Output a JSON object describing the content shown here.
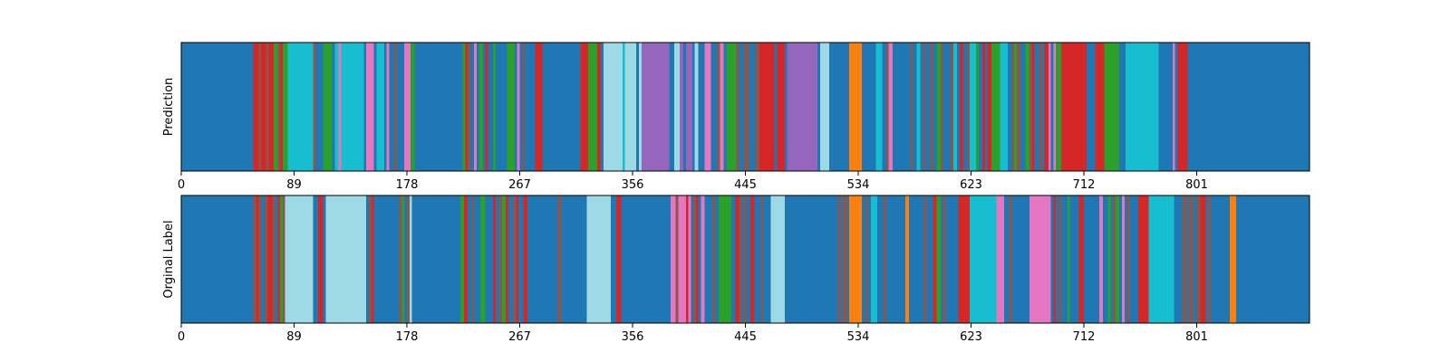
{
  "palette": {
    "B": "#1f77b4",
    "R": "#d62728",
    "G": "#2ca02c",
    "M": "#8c564b",
    "C": "#17becf",
    "L": "#9edae5",
    "P": "#e377c2",
    "V": "#9467bd",
    "O": "#ff7f0e"
  },
  "chart_data": [
    {
      "type": "heatmap",
      "ylabel": "Prediction",
      "xlim": [
        0,
        890
      ],
      "xticks": [
        0,
        89,
        178,
        267,
        356,
        445,
        534,
        623,
        712,
        801
      ],
      "grid": false,
      "segments": [
        [
          "B",
          0,
          57
        ],
        [
          "R",
          57,
          61
        ],
        [
          "M",
          61,
          63
        ],
        [
          "R",
          63,
          67
        ],
        [
          "M",
          67,
          69
        ],
        [
          "R",
          69,
          73
        ],
        [
          "G",
          73,
          76
        ],
        [
          "M",
          76,
          78
        ],
        [
          "R",
          78,
          80
        ],
        [
          "G",
          80,
          84
        ],
        [
          "C",
          84,
          104
        ],
        [
          "M",
          104,
          106
        ],
        [
          "B",
          106,
          112
        ],
        [
          "G",
          112,
          119
        ],
        [
          "B",
          119,
          121
        ],
        [
          "C",
          121,
          124
        ],
        [
          "P",
          124,
          126
        ],
        [
          "C",
          126,
          144
        ],
        [
          "B",
          144,
          146
        ],
        [
          "P",
          146,
          152
        ],
        [
          "B",
          152,
          154
        ],
        [
          "C",
          154,
          160
        ],
        [
          "B",
          160,
          162
        ],
        [
          "P",
          162,
          164
        ],
        [
          "B",
          164,
          168
        ],
        [
          "M",
          168,
          170
        ],
        [
          "B",
          170,
          176
        ],
        [
          "P",
          176,
          181
        ],
        [
          "G",
          181,
          184
        ],
        [
          "B",
          184,
          222
        ],
        [
          "G",
          222,
          224
        ],
        [
          "R",
          224,
          226
        ],
        [
          "M",
          226,
          228
        ],
        [
          "B",
          228,
          231
        ],
        [
          "P",
          231,
          233
        ],
        [
          "B",
          233,
          235
        ],
        [
          "G",
          235,
          238
        ],
        [
          "B",
          238,
          240
        ],
        [
          "R",
          240,
          242
        ],
        [
          "B",
          242,
          246
        ],
        [
          "G",
          246,
          248
        ],
        [
          "B",
          248,
          257
        ],
        [
          "G",
          257,
          263
        ],
        [
          "B",
          263,
          265
        ],
        [
          "P",
          265,
          267
        ],
        [
          "B",
          267,
          269
        ],
        [
          "M",
          269,
          271
        ],
        [
          "B",
          271,
          279
        ],
        [
          "R",
          279,
          285
        ],
        [
          "B",
          285,
          315
        ],
        [
          "R",
          315,
          321
        ],
        [
          "G",
          321,
          328
        ],
        [
          "R",
          328,
          331
        ],
        [
          "B",
          331,
          333
        ],
        [
          "L",
          333,
          348
        ],
        [
          "C",
          348,
          350
        ],
        [
          "L",
          350,
          359
        ],
        [
          "B",
          359,
          361
        ],
        [
          "L",
          361,
          363
        ],
        [
          "V",
          363,
          385
        ],
        [
          "B",
          385,
          389
        ],
        [
          "L",
          389,
          393
        ],
        [
          "V",
          393,
          396
        ],
        [
          "B",
          396,
          398
        ],
        [
          "V",
          398,
          403
        ],
        [
          "B",
          403,
          405
        ],
        [
          "L",
          405,
          408
        ],
        [
          "B",
          408,
          413
        ],
        [
          "P",
          413,
          418
        ],
        [
          "B",
          418,
          423
        ],
        [
          "M",
          423,
          425
        ],
        [
          "P",
          425,
          428
        ],
        [
          "B",
          428,
          430
        ],
        [
          "G",
          430,
          438
        ],
        [
          "M",
          438,
          440
        ],
        [
          "B",
          440,
          444
        ],
        [
          "M",
          444,
          448
        ],
        [
          "B",
          448,
          453
        ],
        [
          "M",
          453,
          456
        ],
        [
          "R",
          456,
          468
        ],
        [
          "B",
          468,
          470
        ],
        [
          "R",
          470,
          476
        ],
        [
          "B",
          476,
          478
        ],
        [
          "V",
          478,
          502
        ],
        [
          "B",
          502,
          504
        ],
        [
          "L",
          504,
          511
        ],
        [
          "B",
          511,
          527
        ],
        [
          "O",
          527,
          537
        ],
        [
          "B",
          537,
          548
        ],
        [
          "C",
          548,
          553
        ],
        [
          "B",
          553,
          556
        ],
        [
          "M",
          556,
          558
        ],
        [
          "P",
          558,
          561
        ],
        [
          "B",
          561,
          575
        ],
        [
          "M",
          575,
          577
        ],
        [
          "B",
          577,
          580
        ],
        [
          "C",
          580,
          583
        ],
        [
          "B",
          583,
          585
        ],
        [
          "M",
          585,
          587
        ],
        [
          "B",
          587,
          591
        ],
        [
          "M",
          591,
          593
        ],
        [
          "B",
          593,
          596
        ],
        [
          "G",
          596,
          599
        ],
        [
          "M",
          599,
          601
        ],
        [
          "B",
          601,
          607
        ],
        [
          "M",
          607,
          609
        ],
        [
          "C",
          609,
          612
        ],
        [
          "B",
          612,
          614
        ],
        [
          "R",
          614,
          617
        ],
        [
          "B",
          617,
          620
        ],
        [
          "M",
          620,
          622
        ],
        [
          "C",
          622,
          627
        ],
        [
          "G",
          627,
          629
        ],
        [
          "B",
          629,
          632
        ],
        [
          "R",
          632,
          634
        ],
        [
          "B",
          634,
          636
        ],
        [
          "R",
          636,
          639
        ],
        [
          "G",
          639,
          646
        ],
        [
          "C",
          646,
          652
        ],
        [
          "B",
          652,
          655
        ],
        [
          "M",
          655,
          657
        ],
        [
          "G",
          657,
          659
        ],
        [
          "M",
          659,
          662
        ],
        [
          "B",
          662,
          666
        ],
        [
          "G",
          666,
          669
        ],
        [
          "M",
          669,
          671
        ],
        [
          "R",
          671,
          673
        ],
        [
          "B",
          673,
          677
        ],
        [
          "M",
          677,
          679
        ],
        [
          "B",
          679,
          681
        ],
        [
          "R",
          681,
          684
        ],
        [
          "P",
          684,
          686
        ],
        [
          "B",
          686,
          688
        ],
        [
          "P",
          688,
          690
        ],
        [
          "G",
          690,
          694
        ],
        [
          "R",
          694,
          714
        ],
        [
          "B",
          714,
          721
        ],
        [
          "R",
          721,
          728
        ],
        [
          "G",
          728,
          740
        ],
        [
          "B",
          740,
          745
        ],
        [
          "C",
          745,
          771
        ],
        [
          "B",
          771,
          782
        ],
        [
          "P",
          782,
          784
        ],
        [
          "B",
          784,
          786
        ],
        [
          "R",
          786,
          794
        ],
        [
          "B",
          794,
          890
        ]
      ]
    },
    {
      "type": "heatmap",
      "ylabel": "Orginal Label",
      "xlim": [
        0,
        890
      ],
      "xticks": [
        0,
        89,
        178,
        267,
        356,
        445,
        534,
        623,
        712,
        801
      ],
      "grid": false,
      "segments": [
        [
          "B",
          0,
          57
        ],
        [
          "M",
          57,
          59
        ],
        [
          "R",
          59,
          61
        ],
        [
          "M",
          61,
          63
        ],
        [
          "B",
          63,
          66
        ],
        [
          "M",
          66,
          68
        ],
        [
          "R",
          68,
          72
        ],
        [
          "M",
          72,
          74
        ],
        [
          "B",
          74,
          76
        ],
        [
          "R",
          76,
          78
        ],
        [
          "G",
          78,
          80
        ],
        [
          "M",
          80,
          82
        ],
        [
          "L",
          82,
          104
        ],
        [
          "B",
          104,
          108
        ],
        [
          "R",
          108,
          112
        ],
        [
          "B",
          112,
          114
        ],
        [
          "L",
          114,
          146
        ],
        [
          "B",
          146,
          148
        ],
        [
          "M",
          148,
          150
        ],
        [
          "R",
          150,
          152
        ],
        [
          "B",
          152,
          172
        ],
        [
          "M",
          172,
          174
        ],
        [
          "G",
          174,
          176
        ],
        [
          "B",
          176,
          178
        ],
        [
          "M",
          178,
          180
        ],
        [
          "L",
          180,
          182
        ],
        [
          "B",
          182,
          220
        ],
        [
          "G",
          220,
          223
        ],
        [
          "R",
          223,
          226
        ],
        [
          "B",
          226,
          229
        ],
        [
          "M",
          229,
          231
        ],
        [
          "B",
          231,
          236
        ],
        [
          "G",
          236,
          240
        ],
        [
          "B",
          240,
          246
        ],
        [
          "R",
          246,
          248
        ],
        [
          "B",
          248,
          251
        ],
        [
          "M",
          251,
          253
        ],
        [
          "G",
          253,
          256
        ],
        [
          "R",
          256,
          258
        ],
        [
          "B",
          258,
          262
        ],
        [
          "M",
          262,
          264
        ],
        [
          "R",
          264,
          266
        ],
        [
          "B",
          266,
          270
        ],
        [
          "R",
          270,
          273
        ],
        [
          "B",
          273,
          297
        ],
        [
          "M",
          297,
          300
        ],
        [
          "B",
          300,
          320
        ],
        [
          "L",
          320,
          339
        ],
        [
          "B",
          339,
          343
        ],
        [
          "R",
          343,
          347
        ],
        [
          "B",
          347,
          386
        ],
        [
          "P",
          386,
          390
        ],
        [
          "M",
          390,
          392
        ],
        [
          "P",
          392,
          398
        ],
        [
          "R",
          398,
          400
        ],
        [
          "P",
          400,
          402
        ],
        [
          "B",
          402,
          404
        ],
        [
          "M",
          404,
          406
        ],
        [
          "R",
          406,
          408
        ],
        [
          "B",
          408,
          410
        ],
        [
          "P",
          410,
          413
        ],
        [
          "B",
          413,
          419
        ],
        [
          "M",
          419,
          421
        ],
        [
          "B",
          421,
          424
        ],
        [
          "G",
          424,
          434
        ],
        [
          "B",
          434,
          437
        ],
        [
          "R",
          437,
          440
        ],
        [
          "M",
          440,
          442
        ],
        [
          "B",
          442,
          444
        ],
        [
          "M",
          444,
          446
        ],
        [
          "B",
          446,
          449
        ],
        [
          "R",
          449,
          452
        ],
        [
          "B",
          452,
          457
        ],
        [
          "M",
          457,
          459
        ],
        [
          "B",
          459,
          465
        ],
        [
          "L",
          465,
          476
        ],
        [
          "B",
          476,
          518
        ],
        [
          "M",
          518,
          520
        ],
        [
          "B",
          520,
          522
        ],
        [
          "M",
          522,
          525
        ],
        [
          "B",
          525,
          527
        ],
        [
          "O",
          527,
          537
        ],
        [
          "B",
          537,
          540
        ],
        [
          "M",
          540,
          542
        ],
        [
          "B",
          542,
          544
        ],
        [
          "C",
          544,
          549
        ],
        [
          "B",
          549,
          554
        ],
        [
          "M",
          554,
          556
        ],
        [
          "B",
          556,
          571
        ],
        [
          "O",
          571,
          574
        ],
        [
          "B",
          574,
          586
        ],
        [
          "M",
          586,
          588
        ],
        [
          "B",
          588,
          593
        ],
        [
          "R",
          593,
          596
        ],
        [
          "G",
          596,
          599
        ],
        [
          "B",
          599,
          601
        ],
        [
          "M",
          601,
          603
        ],
        [
          "B",
          603,
          613
        ],
        [
          "R",
          613,
          622
        ],
        [
          "C",
          622,
          643
        ],
        [
          "P",
          643,
          649
        ],
        [
          "B",
          649,
          653
        ],
        [
          "M",
          653,
          655
        ],
        [
          "B",
          655,
          669
        ],
        [
          "P",
          669,
          686
        ],
        [
          "B",
          686,
          688
        ],
        [
          "R",
          688,
          690
        ],
        [
          "B",
          690,
          692
        ],
        [
          "M",
          692,
          694
        ],
        [
          "B",
          694,
          699
        ],
        [
          "G",
          699,
          701
        ],
        [
          "B",
          701,
          708
        ],
        [
          "R",
          708,
          712
        ],
        [
          "B",
          712,
          724
        ],
        [
          "P",
          724,
          727
        ],
        [
          "B",
          727,
          731
        ],
        [
          "G",
          731,
          733
        ],
        [
          "B",
          733,
          735
        ],
        [
          "M",
          735,
          737
        ],
        [
          "G",
          737,
          740
        ],
        [
          "B",
          740,
          742
        ],
        [
          "P",
          742,
          744
        ],
        [
          "B",
          744,
          746
        ],
        [
          "M",
          746,
          748
        ],
        [
          "B",
          748,
          755
        ],
        [
          "R",
          755,
          763
        ],
        [
          "C",
          763,
          783
        ],
        [
          "B",
          783,
          790
        ],
        [
          "M",
          790,
          793
        ],
        [
          "B",
          793,
          795
        ],
        [
          "M",
          795,
          798
        ],
        [
          "B",
          798,
          801
        ],
        [
          "M",
          801,
          804
        ],
        [
          "R",
          804,
          808
        ],
        [
          "B",
          808,
          810
        ],
        [
          "M",
          810,
          812
        ],
        [
          "B",
          812,
          827
        ],
        [
          "O",
          827,
          832
        ],
        [
          "B",
          832,
          890
        ]
      ]
    }
  ]
}
